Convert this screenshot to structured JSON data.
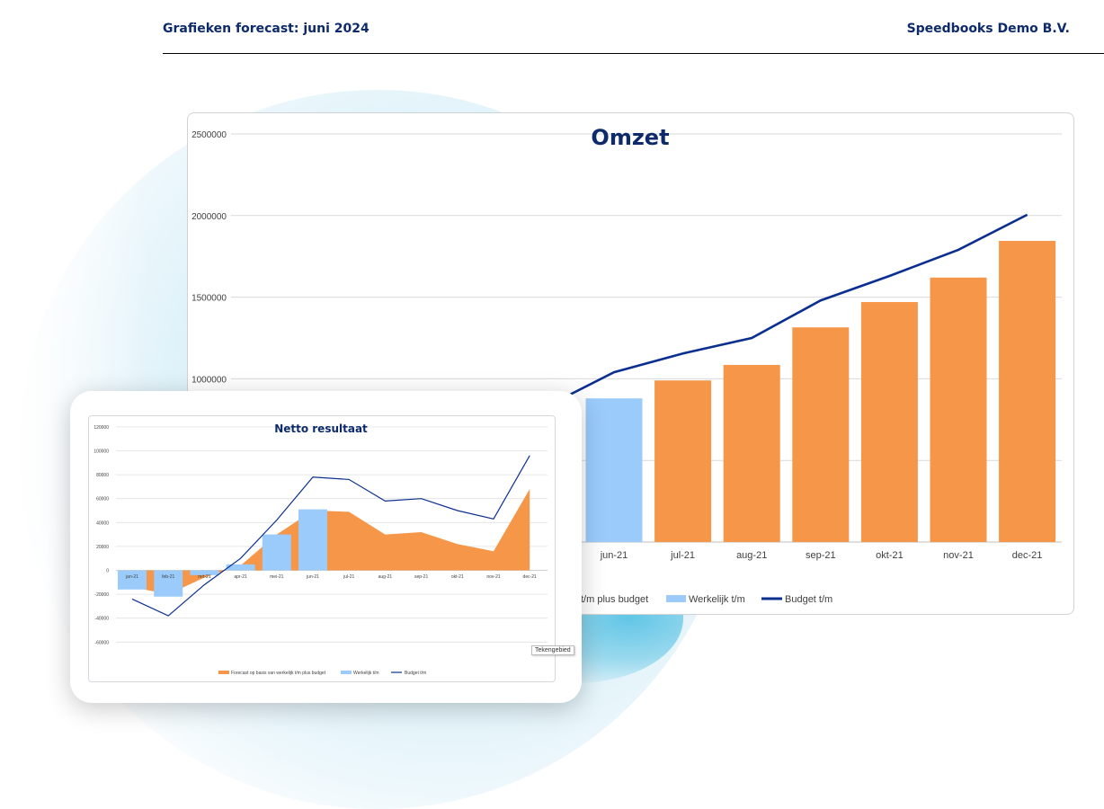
{
  "header": {
    "title": "Grafieken forecast: juni 2024",
    "company": "Speedbooks Demo B.V."
  },
  "colors": {
    "forecast": "#f59648",
    "actual": "#9bcbfb",
    "budget": "#0b2f91",
    "title": "#0d2a6b"
  },
  "tooltip": "Tekengebied",
  "chart_data": [
    {
      "type": "bar",
      "title": "Omzet",
      "ylim": [
        0,
        2500000
      ],
      "yticks": [
        "2500000",
        "2000000",
        "1500000",
        "1000000"
      ],
      "categories": [
        "jun-21",
        "jul-21",
        "aug-21",
        "sep-21",
        "okt-21",
        "nov-21",
        "dec-21"
      ],
      "series": [
        {
          "name": "t/m plus budget",
          "type": "bar",
          "values": [
            null,
            990000,
            1085000,
            1315000,
            1470000,
            1620000,
            1845000
          ]
        },
        {
          "name": "Werkelijk t/m",
          "type": "bar",
          "values": [
            880000,
            null,
            null,
            null,
            null,
            null,
            null
          ]
        },
        {
          "name": "Budget t/m",
          "type": "line",
          "values": [
            1040000,
            1155000,
            1250000,
            1480000,
            1630000,
            1790000,
            2005000
          ]
        }
      ],
      "budget_entry": 895000,
      "legend_position": "bottom",
      "grid": true
    },
    {
      "type": "area",
      "title": "Netto resultaat",
      "ylim": [
        -60000,
        120000
      ],
      "yticks": [
        "120000",
        "100000",
        "80000",
        "60000",
        "40000",
        "20000",
        "0",
        "-20000",
        "-40000",
        "-60000"
      ],
      "categories": [
        "jan-21",
        "feb-21",
        "mrt-21",
        "apr-21",
        "mei-21",
        "jun-21",
        "jul-21",
        "aug-21",
        "sep-21",
        "okt-21",
        "nov-21",
        "dec-21"
      ],
      "series": [
        {
          "name": "Forecast op basis van werkelijk t/m plus budget",
          "type": "area",
          "values": [
            -14000,
            -20000,
            -6000,
            4000,
            30000,
            50000,
            49000,
            30000,
            32000,
            22000,
            16000,
            68000
          ]
        },
        {
          "name": "Werkelijk t/m",
          "type": "bar",
          "values": [
            -16000,
            -22000,
            -4000,
            5000,
            30000,
            51000,
            null,
            null,
            null,
            null,
            null,
            null
          ]
        },
        {
          "name": "Budget t/m",
          "type": "line",
          "values": [
            -24000,
            -38000,
            -12000,
            10000,
            42000,
            78000,
            76000,
            58000,
            60000,
            50000,
            43000,
            96000
          ]
        }
      ],
      "legend_position": "bottom",
      "grid": true
    }
  ]
}
